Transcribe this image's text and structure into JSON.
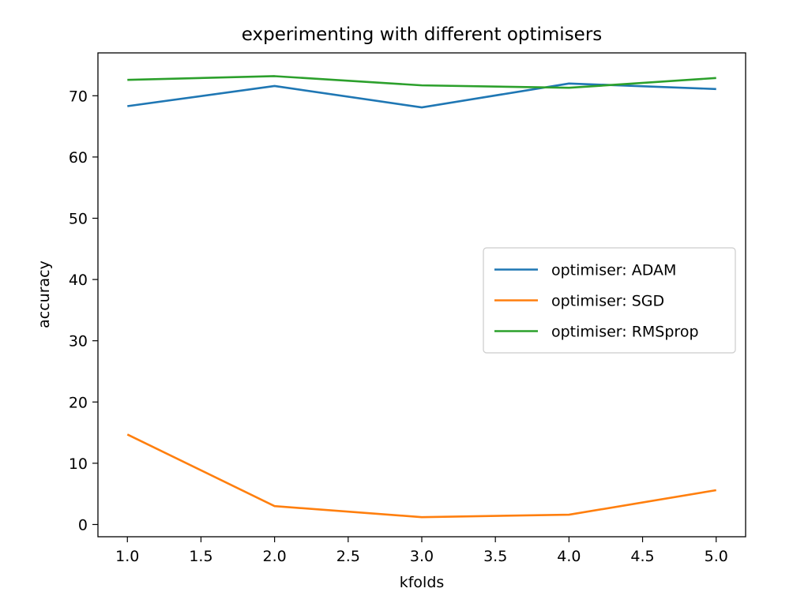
{
  "chart_data": {
    "type": "line",
    "title": "experimenting with different optimisers",
    "xlabel": "kfolds",
    "ylabel": "accuracy",
    "x": [
      1.0,
      2.0,
      3.0,
      4.0,
      5.0
    ],
    "xlim": [
      0.8,
      5.2
    ],
    "ylim": [
      -2,
      77
    ],
    "xticks": [
      1.0,
      1.5,
      2.0,
      2.5,
      3.0,
      3.5,
      4.0,
      4.5,
      5.0
    ],
    "xtick_labels": [
      "1.0",
      "1.5",
      "2.0",
      "2.5",
      "3.0",
      "3.5",
      "4.0",
      "4.5",
      "5.0"
    ],
    "yticks": [
      0,
      10,
      20,
      30,
      40,
      50,
      60,
      70
    ],
    "ytick_labels": [
      "0",
      "10",
      "20",
      "30",
      "40",
      "50",
      "60",
      "70"
    ],
    "grid": false,
    "legend_position": "center-right",
    "series": [
      {
        "name": "optimiser: ADAM",
        "color": "#1f77b4",
        "values": [
          68.3,
          71.6,
          68.1,
          72.0,
          71.1
        ]
      },
      {
        "name": "optimiser: SGD",
        "color": "#ff7f0e",
        "values": [
          14.7,
          3.0,
          1.2,
          1.6,
          5.6
        ]
      },
      {
        "name": "optimiser: RMSprop",
        "color": "#2ca02c",
        "values": [
          72.6,
          73.2,
          71.7,
          71.3,
          72.9
        ]
      }
    ]
  }
}
